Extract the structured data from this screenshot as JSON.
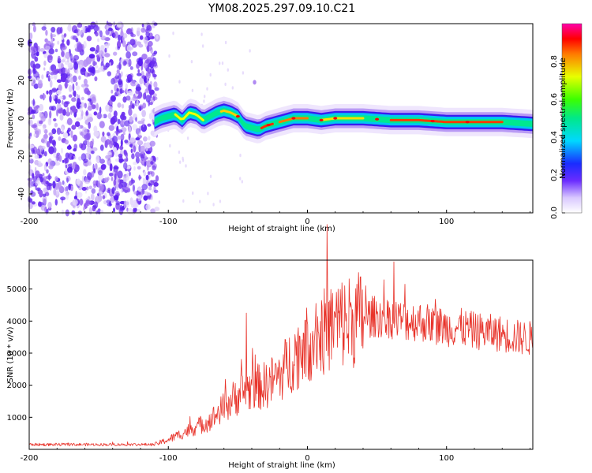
{
  "title": "YM08.2025.297.09.10.C21",
  "chart_data": [
    {
      "type": "heatmap",
      "name": "spectrogram",
      "xlabel": "Height of straight line (km)",
      "ylabel": "Frequency (Hz)",
      "xlim": [
        -200,
        162
      ],
      "ylim": [
        -50,
        50
      ],
      "xticks": [
        -200,
        -100,
        0,
        100
      ],
      "yticks": [
        -40,
        -20,
        0,
        20,
        40
      ],
      "noise_region": [
        -200,
        -108
      ],
      "ridge": {
        "x": [
          -110,
          -105,
          -100,
          -95,
          -90,
          -85,
          -80,
          -75,
          -70,
          -65,
          -60,
          -55,
          -50,
          -45,
          -40,
          -35,
          -30,
          -25,
          -20,
          -15,
          -10,
          -5,
          0,
          10,
          20,
          40,
          60,
          80,
          100,
          120,
          140,
          162
        ],
        "y": [
          -2,
          0,
          1,
          2,
          -1,
          3,
          2,
          -1,
          1,
          3,
          4,
          3,
          1,
          -4,
          -5,
          -6,
          -4,
          -3,
          -2,
          -1,
          0,
          0,
          0,
          -1,
          0,
          0,
          -1,
          -1,
          -2,
          -2,
          -2,
          -3
        ]
      },
      "colorbar": {
        "label": "Normalized spectral amplitude",
        "ticks": [
          "0.0",
          "0.2",
          "0.4",
          "0.6",
          "0.8"
        ],
        "range": [
          0,
          1
        ]
      }
    },
    {
      "type": "line",
      "name": "snr",
      "xlabel": "Height of straight line (km)",
      "ylabel": "SNR (10 * v/v)",
      "xlim": [
        -200,
        162
      ],
      "ylim": [
        0,
        5900
      ],
      "xticks": [
        -200,
        -100,
        0,
        100
      ],
      "yticks": [
        1000,
        2000,
        3000,
        4000,
        5000
      ],
      "color": "#e8332a",
      "envelope": {
        "x": [
          -200,
          -110,
          -100,
          -90,
          -80,
          -70,
          -60,
          -50,
          -40,
          -30,
          -20,
          -10,
          0,
          10,
          20,
          30,
          40,
          50,
          60,
          70,
          80,
          90,
          100,
          110,
          120,
          130,
          140,
          150,
          162
        ],
        "y": [
          150,
          150,
          300,
          500,
          700,
          900,
          1300,
          1700,
          1900,
          2000,
          2300,
          2900,
          3300,
          3600,
          3900,
          4000,
          4100,
          4150,
          4100,
          4000,
          4000,
          3900,
          3800,
          3800,
          3700,
          3650,
          3600,
          3500,
          3450
        ]
      },
      "peaks": [
        {
          "x": -44,
          "y": 4250
        },
        {
          "x": 6,
          "y": 4550
        },
        {
          "x": 42,
          "y": 5100
        },
        {
          "x": 62,
          "y": 5850
        },
        {
          "x": 70,
          "y": 5150
        }
      ]
    }
  ]
}
